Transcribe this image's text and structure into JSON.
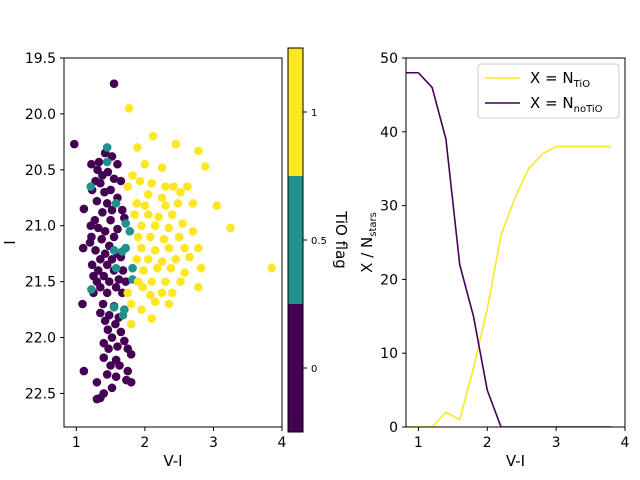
{
  "chart_data": [
    {
      "type": "scatter",
      "panel": "left",
      "xlabel": "V-I",
      "ylabel": "I",
      "xlim": [
        0.82,
        4.0
      ],
      "ylim": [
        22.8,
        19.5
      ],
      "y_inverted": true,
      "x_ticks": [
        1,
        2,
        3,
        4
      ],
      "y_ticks": [
        19.5,
        20.0,
        20.5,
        21.0,
        21.5,
        22.0,
        22.5
      ],
      "x_tick_labels": [
        "1",
        "2",
        "3",
        "4"
      ],
      "y_tick_labels": [
        "19.5",
        "20.0",
        "20.5",
        "21.0",
        "21.5",
        "22.0",
        "22.5"
      ],
      "grid": false,
      "colors": {
        "flag_0": "#440154",
        "flag_0_5": "#21918c",
        "flag_1": "#fde725"
      },
      "series": [
        {
          "name": "TiO flag 0",
          "tio_flag": 0,
          "points": [
            [
              0.97,
              20.27
            ],
            [
              1.55,
              19.73
            ],
            [
              1.42,
              20.35
            ],
            [
              1.52,
              20.38
            ],
            [
              1.33,
              20.43
            ],
            [
              1.22,
              20.45
            ],
            [
              1.6,
              20.45
            ],
            [
              1.31,
              20.5
            ],
            [
              1.38,
              20.55
            ],
            [
              1.46,
              20.52
            ],
            [
              1.28,
              20.6
            ],
            [
              1.35,
              20.62
            ],
            [
              1.55,
              20.58
            ],
            [
              1.65,
              20.6
            ],
            [
              1.23,
              20.68
            ],
            [
              1.41,
              20.7
            ],
            [
              1.5,
              20.68
            ],
            [
              1.3,
              20.78
            ],
            [
              1.45,
              20.8
            ],
            [
              1.6,
              20.75
            ],
            [
              1.11,
              20.85
            ],
            [
              1.38,
              20.88
            ],
            [
              1.52,
              20.86
            ],
            [
              1.67,
              20.86
            ],
            [
              1.27,
              20.95
            ],
            [
              1.5,
              20.95
            ],
            [
              1.7,
              20.93
            ],
            [
              1.21,
              21.0
            ],
            [
              1.32,
              21.02
            ],
            [
              1.42,
              21.05
            ],
            [
              1.6,
              21.03
            ],
            [
              1.22,
              21.1
            ],
            [
              1.37,
              21.12
            ],
            [
              1.55,
              21.1
            ],
            [
              1.2,
              21.15
            ],
            [
              1.48,
              21.18
            ],
            [
              1.1,
              21.2
            ],
            [
              1.28,
              21.22
            ],
            [
              1.42,
              21.25
            ],
            [
              1.6,
              21.25
            ],
            [
              1.35,
              21.3
            ],
            [
              1.52,
              21.3
            ],
            [
              1.65,
              21.28
            ],
            [
              1.23,
              21.35
            ],
            [
              1.45,
              21.35
            ],
            [
              1.32,
              21.4
            ],
            [
              1.55,
              21.4
            ],
            [
              1.68,
              21.4
            ],
            [
              1.25,
              21.45
            ],
            [
              1.4,
              21.45
            ],
            [
              1.62,
              21.48
            ],
            [
              1.3,
              21.5
            ],
            [
              1.48,
              21.5
            ],
            [
              1.72,
              21.5
            ],
            [
              1.35,
              21.55
            ],
            [
              1.58,
              21.55
            ],
            [
              1.25,
              21.6
            ],
            [
              1.45,
              21.6
            ],
            [
              1.67,
              21.6
            ],
            [
              1.09,
              21.7
            ],
            [
              1.39,
              21.7
            ],
            [
              1.55,
              21.72
            ],
            [
              1.35,
              21.78
            ],
            [
              1.48,
              21.8
            ],
            [
              1.62,
              21.82
            ],
            [
              1.42,
              21.85
            ],
            [
              1.57,
              21.88
            ],
            [
              1.46,
              21.93
            ],
            [
              1.65,
              21.95
            ],
            [
              1.52,
              22.0
            ],
            [
              1.7,
              22.03
            ],
            [
              1.4,
              22.05
            ],
            [
              1.6,
              22.08
            ],
            [
              1.47,
              22.1
            ],
            [
              1.75,
              22.1
            ],
            [
              1.4,
              22.18
            ],
            [
              1.58,
              22.2
            ],
            [
              1.8,
              22.15
            ],
            [
              1.5,
              22.25
            ],
            [
              1.63,
              22.25
            ],
            [
              1.75,
              22.3
            ],
            [
              1.11,
              22.3
            ],
            [
              1.45,
              22.33
            ],
            [
              1.58,
              22.35
            ],
            [
              1.73,
              22.38
            ],
            [
              1.3,
              22.4
            ],
            [
              1.8,
              22.4
            ],
            [
              1.52,
              22.45
            ],
            [
              1.4,
              22.5
            ],
            [
              1.35,
              22.54
            ],
            [
              1.3,
              22.55
            ]
          ]
        },
        {
          "name": "TiO flag 0.5",
          "tio_flag": 0.5,
          "points": [
            [
              1.45,
              20.3
            ],
            [
              1.45,
              20.43
            ],
            [
              1.21,
              20.65
            ],
            [
              1.58,
              20.8
            ],
            [
              1.72,
              20.98
            ],
            [
              1.78,
              21.05
            ],
            [
              1.72,
              21.2
            ],
            [
              1.55,
              21.22
            ],
            [
              1.67,
              21.23
            ],
            [
              1.58,
              21.38
            ],
            [
              1.82,
              21.38
            ],
            [
              1.82,
              21.48
            ],
            [
              1.22,
              21.57
            ],
            [
              1.7,
              21.75
            ],
            [
              1.55,
              21.73
            ],
            [
              1.68,
              21.8
            ]
          ]
        },
        {
          "name": "TiO flag 1",
          "tio_flag": 1,
          "points": [
            [
              1.77,
              19.95
            ],
            [
              2.12,
              20.2
            ],
            [
              2.45,
              20.27
            ],
            [
              1.89,
              20.3
            ],
            [
              2.78,
              20.33
            ],
            [
              2.0,
              20.45
            ],
            [
              2.25,
              20.48
            ],
            [
              2.88,
              20.47
            ],
            [
              1.82,
              20.55
            ],
            [
              1.93,
              20.6
            ],
            [
              2.1,
              20.62
            ],
            [
              2.3,
              20.65
            ],
            [
              1.75,
              20.65
            ],
            [
              2.42,
              20.65
            ],
            [
              2.62,
              20.65
            ],
            [
              2.05,
              20.72
            ],
            [
              2.25,
              20.75
            ],
            [
              2.52,
              20.7
            ],
            [
              1.88,
              20.8
            ],
            [
              2.0,
              20.82
            ],
            [
              2.3,
              20.82
            ],
            [
              2.48,
              20.8
            ],
            [
              2.7,
              20.8
            ],
            [
              1.85,
              20.9
            ],
            [
              2.05,
              20.9
            ],
            [
              2.2,
              20.92
            ],
            [
              2.4,
              20.9
            ],
            [
              3.05,
              20.82
            ],
            [
              1.95,
              21.0
            ],
            [
              2.15,
              21.0
            ],
            [
              2.35,
              21.02
            ],
            [
              2.55,
              20.98
            ],
            [
              3.25,
              21.02
            ],
            [
              1.9,
              21.1
            ],
            [
              2.08,
              21.1
            ],
            [
              2.28,
              21.12
            ],
            [
              2.5,
              21.1
            ],
            [
              2.7,
              21.05
            ],
            [
              1.95,
              21.2
            ],
            [
              2.15,
              21.22
            ],
            [
              2.35,
              21.2
            ],
            [
              2.58,
              21.2
            ],
            [
              2.78,
              21.2
            ],
            [
              1.88,
              21.3
            ],
            [
              2.05,
              21.3
            ],
            [
              2.25,
              21.32
            ],
            [
              2.45,
              21.3
            ],
            [
              2.65,
              21.28
            ],
            [
              1.98,
              21.4
            ],
            [
              2.18,
              21.38
            ],
            [
              2.38,
              21.38
            ],
            [
              2.58,
              21.42
            ],
            [
              2.82,
              21.38
            ],
            [
              3.85,
              21.38
            ],
            [
              1.9,
              21.5
            ],
            [
              2.1,
              21.5
            ],
            [
              2.3,
              21.5
            ],
            [
              2.52,
              21.5
            ],
            [
              2.08,
              21.62
            ],
            [
              2.25,
              21.6
            ],
            [
              1.97,
              21.55
            ],
            [
              2.78,
              21.55
            ],
            [
              2.4,
              21.6
            ],
            [
              2.15,
              21.68
            ],
            [
              2.35,
              21.7
            ],
            [
              1.75,
              21.6
            ],
            [
              1.8,
              21.7
            ],
            [
              1.95,
              21.75
            ],
            [
              2.1,
              21.83
            ],
            [
              1.8,
              21.88
            ]
          ]
        }
      ],
      "colorbar": {
        "label": "TiO flag",
        "ticks": [
          0,
          0.5,
          1
        ],
        "tick_labels": [
          "0",
          "0.5",
          "1"
        ],
        "range": [
          -0.25,
          1.25
        ],
        "bands": [
          {
            "from": -0.25,
            "to": 0.25,
            "color": "#440154"
          },
          {
            "from": 0.25,
            "to": 0.75,
            "color": "#21918c"
          },
          {
            "from": 0.75,
            "to": 1.25,
            "color": "#fde725"
          }
        ]
      }
    },
    {
      "type": "line",
      "panel": "right",
      "xlabel": "V-I",
      "ylabel": "X / N",
      "ylabel_sub": "stars",
      "xlim": [
        0.82,
        4.0
      ],
      "ylim": [
        0,
        50
      ],
      "x_ticks": [
        1,
        2,
        3,
        4
      ],
      "y_ticks": [
        0,
        10,
        20,
        30,
        40,
        50
      ],
      "x_tick_labels": [
        "1",
        "2",
        "3",
        "4"
      ],
      "y_tick_labels": [
        "0",
        "10",
        "20",
        "30",
        "40",
        "50"
      ],
      "grid": false,
      "legend_position": "top-right",
      "series": [
        {
          "name": "TiO",
          "label_main": "X = N",
          "label_sub": "TiO",
          "color": "#fde725",
          "x": [
            0.8,
            1.0,
            1.2,
            1.4,
            1.6,
            1.8,
            2.0,
            2.2,
            2.4,
            2.6,
            2.8,
            3.0,
            3.2,
            3.4,
            3.6,
            3.8
          ],
          "y": [
            0,
            0,
            0,
            2,
            1,
            8,
            16,
            26,
            31,
            35,
            37,
            38,
            38,
            38,
            38,
            38
          ]
        },
        {
          "name": "noTiO",
          "label_main": "X = N",
          "label_sub": "noTiO",
          "color": "#440154",
          "x": [
            0.8,
            1.0,
            1.2,
            1.4,
            1.6,
            1.8,
            2.0,
            2.2,
            2.4,
            2.6,
            2.8,
            3.0,
            3.2,
            3.4,
            3.6,
            3.8
          ],
          "y": [
            48,
            48,
            46,
            39,
            22,
            15,
            5,
            0,
            0,
            0,
            0,
            0,
            0,
            0,
            0,
            0
          ]
        }
      ]
    }
  ]
}
